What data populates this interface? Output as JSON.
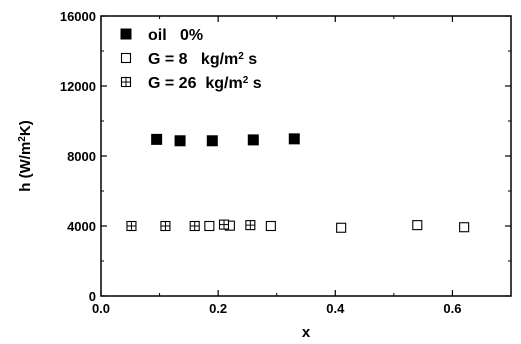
{
  "chart_data": {
    "type": "scatter",
    "title": "",
    "xlabel": "x",
    "ylabel": "h (W/m2K)",
    "ylabel_base": "h (W/m",
    "ylabel_sup": "2",
    "ylabel_tail": "K)",
    "xlim": [
      0.0,
      0.7
    ],
    "ylim": [
      0,
      16000
    ],
    "x_ticks": [
      "0.0",
      "0.2",
      "0.4",
      "0.6"
    ],
    "y_ticks": [
      "0",
      "4000",
      "8000",
      "12000",
      "16000"
    ],
    "grid": false,
    "legend_position": "top-left",
    "series": [
      {
        "legend_label": "oil   0%",
        "marker": "filled-square",
        "points": [
          [
            0.095,
            8950
          ],
          [
            0.135,
            8870
          ],
          [
            0.19,
            8870
          ],
          [
            0.26,
            8920
          ],
          [
            0.33,
            8980
          ]
        ]
      },
      {
        "legend_label": "G = 8   kg/m² s",
        "legend_main": "G = 8   kg/m",
        "legend_sup": "2",
        "legend_tail": " s",
        "marker": "open-square",
        "points": [
          [
            0.185,
            4000
          ],
          [
            0.22,
            4020
          ],
          [
            0.29,
            4000
          ],
          [
            0.41,
            3900
          ],
          [
            0.54,
            4050
          ],
          [
            0.62,
            3930
          ]
        ]
      },
      {
        "legend_label": "G = 26  kg/m² s",
        "legend_main": "G = 26  kg/m",
        "legend_sup": "2",
        "legend_tail": " s",
        "marker": "crossed-square",
        "points": [
          [
            0.052,
            4000
          ],
          [
            0.11,
            4000
          ],
          [
            0.16,
            4000
          ],
          [
            0.21,
            4080
          ],
          [
            0.255,
            4050
          ]
        ]
      }
    ]
  }
}
